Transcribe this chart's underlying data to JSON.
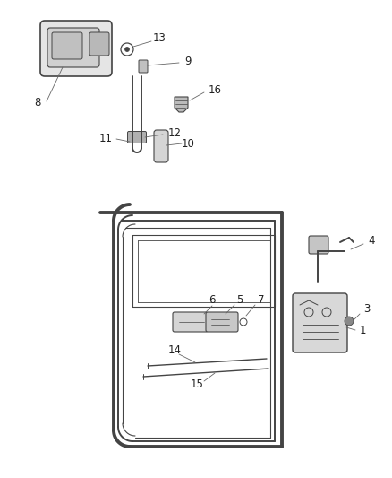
{
  "bg_color": "#ffffff",
  "line_color": "#444444",
  "text_color": "#222222",
  "lw_thick": 2.8,
  "lw_mid": 1.4,
  "lw_thin": 0.8,
  "fs_label": 8.5
}
